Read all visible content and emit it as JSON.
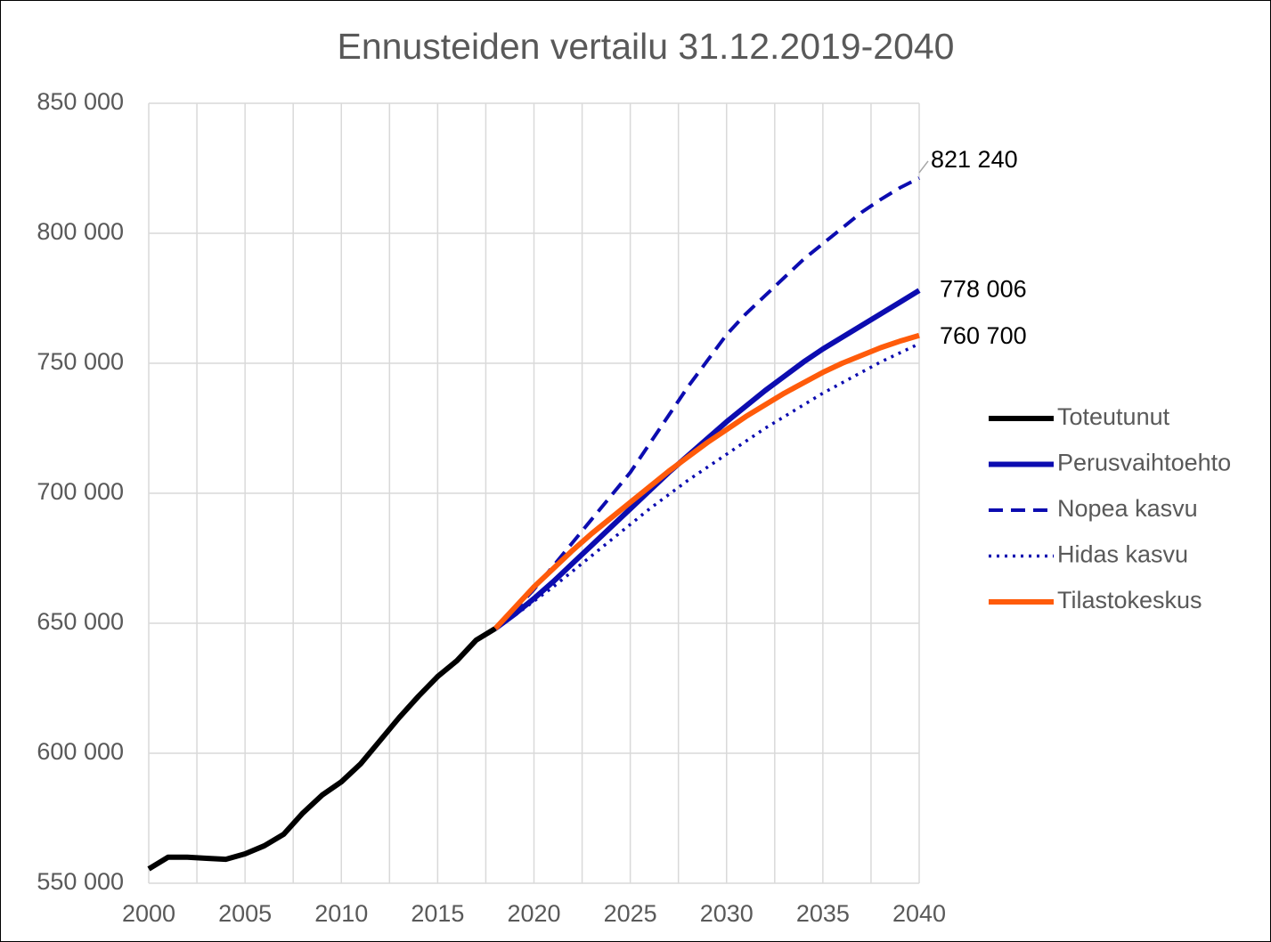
{
  "chart_data": {
    "type": "line",
    "title": "Ennusteiden vertailu 31.12.2019-2040",
    "x": [
      2000,
      2001,
      2002,
      2003,
      2004,
      2005,
      2006,
      2007,
      2008,
      2009,
      2010,
      2011,
      2012,
      2013,
      2014,
      2015,
      2016,
      2017,
      2018,
      2019,
      2020,
      2021,
      2022,
      2023,
      2024,
      2025,
      2026,
      2027,
      2028,
      2029,
      2030,
      2031,
      2032,
      2033,
      2034,
      2035,
      2036,
      2037,
      2038,
      2039,
      2040
    ],
    "series": [
      {
        "name": "Toteutunut",
        "color": "#000000",
        "dash": "solid",
        "values": [
          555500,
          560000,
          560000,
          559600,
          559200,
          561300,
          564400,
          568800,
          577000,
          583900,
          589000,
          595900,
          604800,
          613700,
          621900,
          629500,
          635600,
          643500,
          648000,
          null,
          null,
          null,
          null,
          null,
          null,
          null,
          null,
          null,
          null,
          null,
          null,
          null,
          null,
          null,
          null,
          null,
          null,
          null,
          null,
          null,
          null
        ]
      },
      {
        "name": "Perusvaihtoehto",
        "color": "#0c0cb0",
        "dash": "solid",
        "values": [
          null,
          null,
          null,
          null,
          null,
          null,
          null,
          null,
          null,
          null,
          null,
          null,
          null,
          null,
          null,
          null,
          null,
          null,
          648000,
          653500,
          659500,
          666000,
          673000,
          680000,
          687000,
          694000,
          701000,
          708000,
          714500,
          721000,
          727500,
          733500,
          739500,
          745000,
          750500,
          755500,
          760000,
          764500,
          769000,
          773500,
          778006
        ],
        "value_labels": [
          null,
          null,
          null,
          null,
          null,
          null,
          null,
          null,
          null,
          null,
          null,
          null,
          null,
          null,
          null,
          null,
          null,
          null,
          null,
          null,
          null,
          null,
          null,
          null,
          null,
          null,
          null,
          null,
          null,
          null,
          null,
          null,
          null,
          null,
          null,
          null,
          null,
          null,
          null,
          null,
          "778 006"
        ]
      },
      {
        "name": "Nopea kasvu",
        "color": "#0c0cb0",
        "dash": "dash",
        "values": [
          null,
          null,
          null,
          null,
          null,
          null,
          null,
          null,
          null,
          null,
          null,
          null,
          null,
          null,
          null,
          null,
          null,
          null,
          648000,
          655000,
          663000,
          672000,
          681000,
          690000,
          699000,
          708000,
          719000,
          730000,
          741000,
          751000,
          761000,
          769000,
          776000,
          783000,
          790000,
          796000,
          802000,
          808000,
          813000,
          817500,
          821240
        ],
        "value_labels": [
          null,
          null,
          null,
          null,
          null,
          null,
          null,
          null,
          null,
          null,
          null,
          null,
          null,
          null,
          null,
          null,
          null,
          null,
          null,
          null,
          null,
          null,
          null,
          null,
          null,
          null,
          null,
          null,
          null,
          null,
          null,
          null,
          null,
          null,
          null,
          null,
          null,
          null,
          null,
          null,
          "821 240"
        ]
      },
      {
        "name": "Hidas kasvu",
        "color": "#0c0cb0",
        "dash": "dot",
        "values": [
          null,
          null,
          null,
          null,
          null,
          null,
          null,
          null,
          null,
          null,
          null,
          null,
          null,
          null,
          null,
          null,
          null,
          null,
          648000,
          653000,
          658500,
          664000,
          670000,
          676000,
          682000,
          688000,
          694000,
          699500,
          705000,
          710000,
          715000,
          720000,
          725000,
          729500,
          734000,
          738500,
          742500,
          746500,
          750500,
          754000,
          757500
        ]
      },
      {
        "name": "Tilastokeskus",
        "color": "#ff5b0a",
        "dash": "solid",
        "values": [
          null,
          null,
          null,
          null,
          null,
          null,
          null,
          null,
          null,
          null,
          null,
          null,
          null,
          null,
          null,
          null,
          null,
          null,
          648000,
          656000,
          664000,
          671000,
          678000,
          684500,
          690500,
          696500,
          702500,
          708500,
          714000,
          719500,
          724500,
          729500,
          734000,
          738500,
          742500,
          746500,
          750000,
          753000,
          756000,
          758500,
          760700
        ],
        "value_labels": [
          null,
          null,
          null,
          null,
          null,
          null,
          null,
          null,
          null,
          null,
          null,
          null,
          null,
          null,
          null,
          null,
          null,
          null,
          null,
          null,
          null,
          null,
          null,
          null,
          null,
          null,
          null,
          null,
          null,
          null,
          null,
          null,
          null,
          null,
          null,
          null,
          null,
          null,
          null,
          null,
          "760 700"
        ]
      }
    ],
    "xlim": [
      2000,
      2040
    ],
    "xticks": [
      2000,
      2005,
      2010,
      2015,
      2020,
      2025,
      2030,
      2035,
      2040
    ],
    "xminor_grid": [
      2002.5,
      2007.5,
      2012.5,
      2017.5,
      2022.5,
      2027.5,
      2032.5,
      2037.5
    ],
    "ylim": [
      550000,
      850000
    ],
    "yticks": [
      {
        "value": 550000,
        "label": "550 000"
      },
      {
        "value": 600000,
        "label": "600 000"
      },
      {
        "value": 650000,
        "label": "650 000"
      },
      {
        "value": 700000,
        "label": "700 000"
      },
      {
        "value": 750000,
        "label": "750 000"
      },
      {
        "value": 800000,
        "label": "800 000"
      },
      {
        "value": 850000,
        "label": "850 000"
      }
    ],
    "grid": true,
    "legend": "right"
  }
}
